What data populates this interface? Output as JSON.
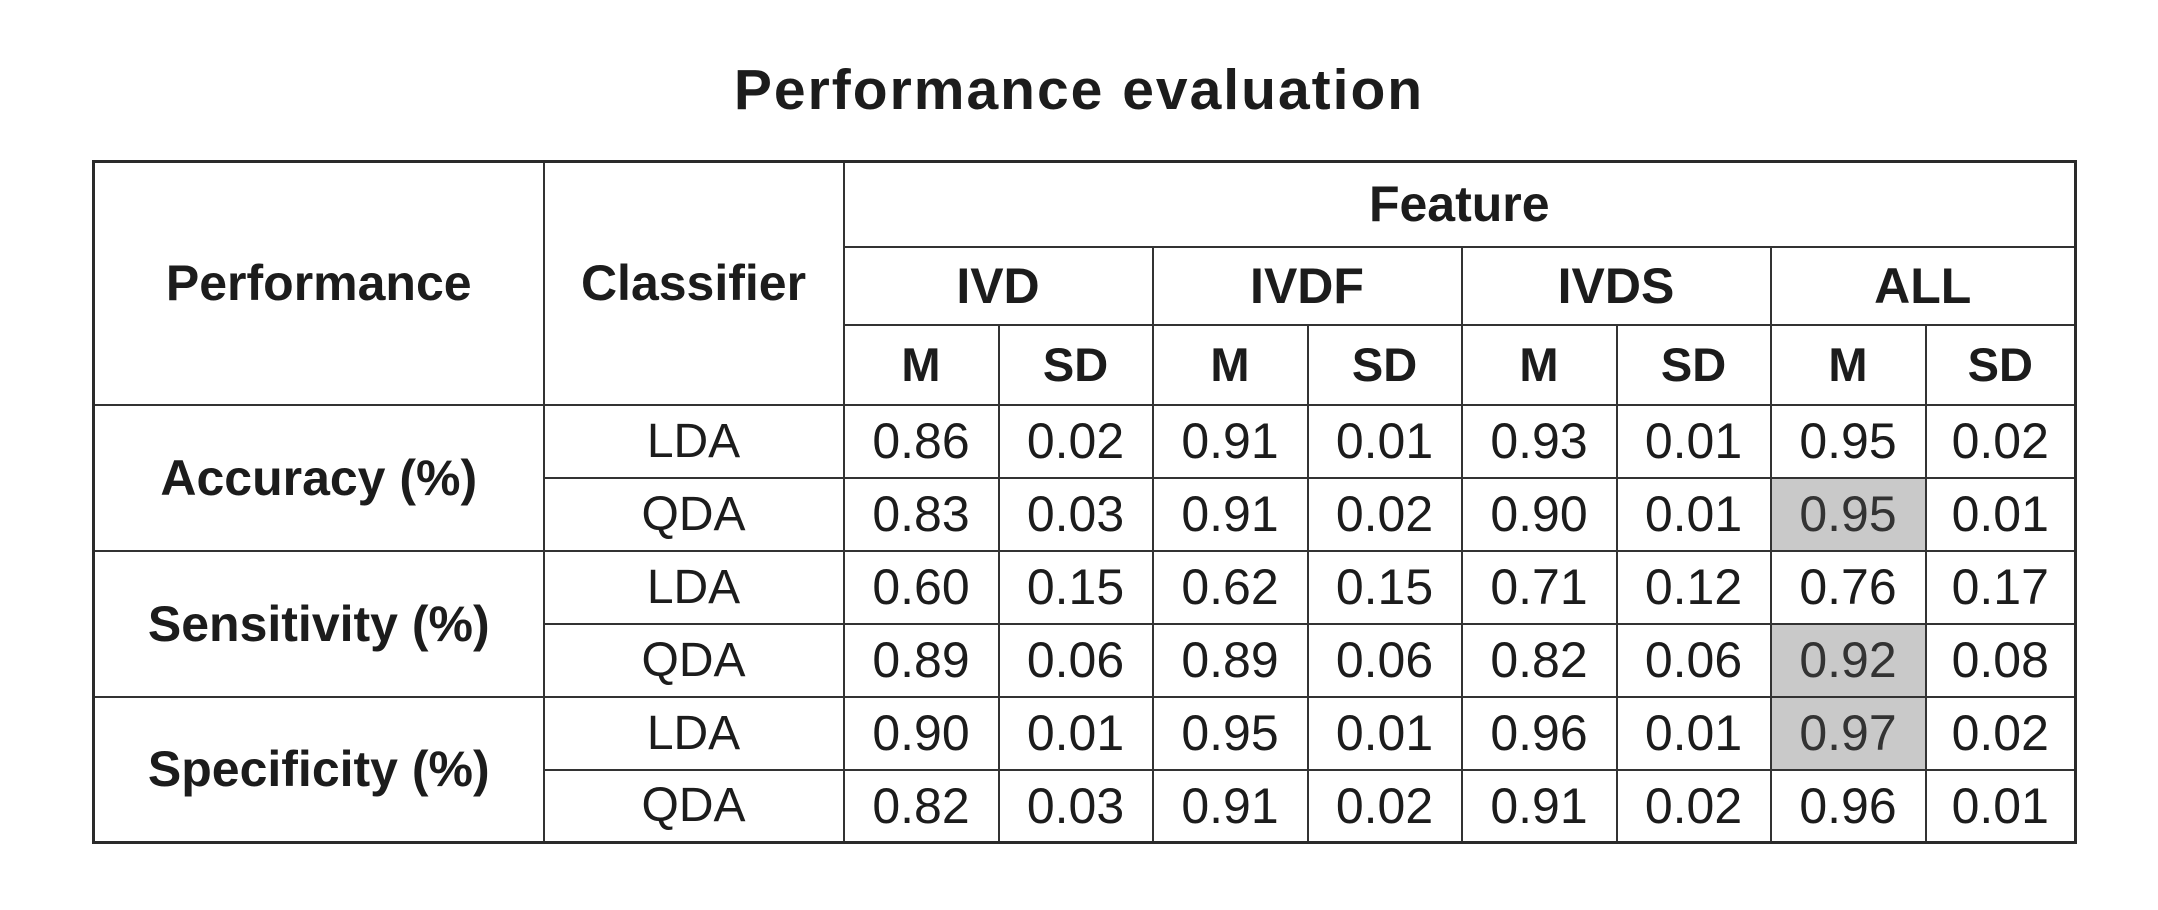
{
  "title": "Performance evaluation",
  "table": {
    "header": {
      "performance": "Performance",
      "classifier": "Classifier",
      "feature": "Feature",
      "features": [
        "IVD",
        "IVDF",
        "IVDS",
        "ALL"
      ],
      "m_label": "M",
      "sd_label": "SD"
    },
    "groups": [
      {
        "metric": "Accuracy (%)",
        "rows": [
          {
            "classifier": "LDA",
            "values": [
              "0.86",
              "0.02",
              "0.91",
              "0.01",
              "0.93",
              "0.01",
              "0.95",
              "0.02"
            ],
            "highlight": []
          },
          {
            "classifier": "QDA",
            "values": [
              "0.83",
              "0.03",
              "0.91",
              "0.02",
              "0.90",
              "0.01",
              "0.95",
              "0.01"
            ],
            "highlight": [
              6
            ]
          }
        ]
      },
      {
        "metric": "Sensitivity (%)",
        "rows": [
          {
            "classifier": "LDA",
            "values": [
              "0.60",
              "0.15",
              "0.62",
              "0.15",
              "0.71",
              "0.12",
              "0.76",
              "0.17"
            ],
            "highlight": []
          },
          {
            "classifier": "QDA",
            "values": [
              "0.89",
              "0.06",
              "0.89",
              "0.06",
              "0.82",
              "0.06",
              "0.92",
              "0.08"
            ],
            "highlight": [
              6
            ]
          }
        ]
      },
      {
        "metric": "Specificity (%)",
        "rows": [
          {
            "classifier": "LDA",
            "values": [
              "0.90",
              "0.01",
              "0.95",
              "0.01",
              "0.96",
              "0.01",
              "0.97",
              "0.02"
            ],
            "highlight": [
              6
            ]
          },
          {
            "classifier": "QDA",
            "values": [
              "0.82",
              "0.03",
              "0.91",
              "0.02",
              "0.91",
              "0.02",
              "0.96",
              "0.01"
            ],
            "highlight": []
          }
        ]
      }
    ],
    "colors": {
      "highlight": "#c9c9c9",
      "border": "#333333",
      "text": "#1c1c1c"
    }
  }
}
